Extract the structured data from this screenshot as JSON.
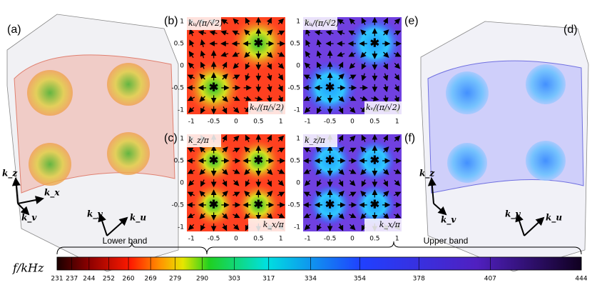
{
  "panels": {
    "a": "(a)",
    "d": "(d)"
  },
  "maps": [
    {
      "label": "(b)",
      "y_axis": "kᵤ/(π/√2)",
      "x_axis": "kᵥ/(π/√2)",
      "x_ticks": [
        "-1",
        "-0.5",
        "0",
        "0.5",
        "1"
      ],
      "y_ticks": [
        "1",
        "0.5",
        "0",
        "-0.5",
        "-1"
      ]
    },
    {
      "label": "(e)",
      "y_axis": "kᵤ/(π/√2)",
      "x_axis": "kᵥ/(π/√2)",
      "x_ticks": [
        "-1",
        "-0.5",
        "0",
        "0.5",
        "1"
      ],
      "y_ticks": [
        "1",
        "0.5",
        "0",
        "-0.5",
        "-1"
      ]
    },
    {
      "label": "(c)",
      "y_axis": "k_z/π",
      "x_axis": "k_x/π",
      "x_ticks": [
        "-1",
        "-0.5",
        "0",
        "0.5",
        "1"
      ],
      "y_ticks": [
        "1",
        "0.5",
        "0",
        "-0.5",
        "-1"
      ]
    },
    {
      "label": "(f)",
      "y_axis": "k_z/π",
      "x_axis": "k_x/π",
      "x_ticks": [
        "-1",
        "-0.5",
        "0",
        "0.5",
        "1"
      ],
      "y_ticks": [
        "1",
        "0.5",
        "0",
        "-0.5",
        "-1"
      ]
    }
  ],
  "cube_left": {
    "kz": "k_z",
    "kx": "k_x",
    "kv": "k_v",
    "ky": "k_y",
    "ku": "k_u"
  },
  "cube_right": {
    "kz": "k_z",
    "kv": "k_v",
    "ky": "k_y",
    "ku": "k_u"
  },
  "colorbar": {
    "unit": "f/kHz",
    "lower": "Lower band",
    "upper": "Upper band",
    "ticks": [
      "231",
      "237",
      "244",
      "252",
      "260",
      "269",
      "279",
      "290",
      "303",
      "317",
      "334",
      "354",
      "378",
      "407",
      "444"
    ]
  }
}
